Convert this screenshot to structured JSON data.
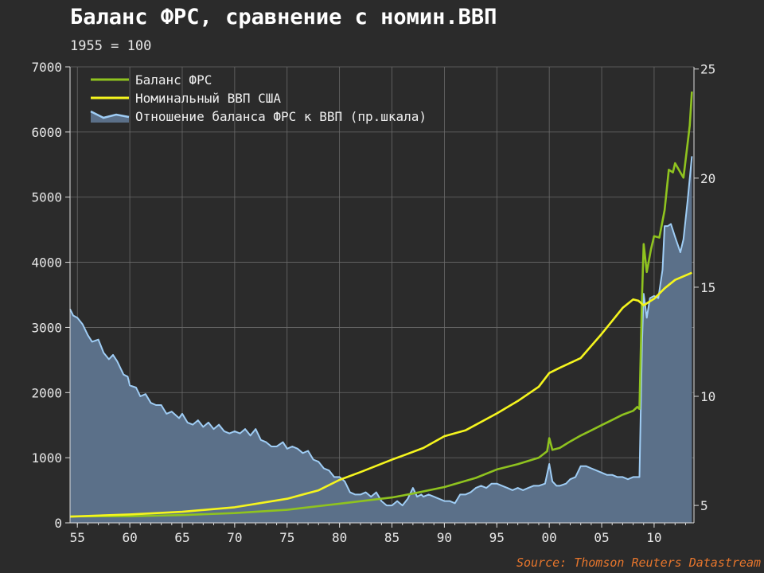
{
  "title": "Баланс ФРС, сравнение с номин.ВВП",
  "subtitle": "1955 = 100",
  "source": "Source: Thomson Reuters Datastream",
  "colors": {
    "background": "#2b2b2b",
    "fed_balance": "#8fc31f",
    "gdp": "#f5f51e",
    "ratio_line": "#9fcdf5",
    "ratio_fill": "#5b7089",
    "grid": "#6a6a6a"
  },
  "chart_data": {
    "type": "line",
    "x_unit": "year",
    "xlim": [
      1954.3,
      2013.8
    ],
    "ylim_left": [
      0,
      7000
    ],
    "ylim_right": [
      4.2,
      25.1
    ],
    "x_ticks": [
      {
        "value": 1955,
        "label": "55"
      },
      {
        "value": 1960,
        "label": "60"
      },
      {
        "value": 1965,
        "label": "65"
      },
      {
        "value": 1970,
        "label": "70"
      },
      {
        "value": 1975,
        "label": "75"
      },
      {
        "value": 1980,
        "label": "80"
      },
      {
        "value": 1985,
        "label": "85"
      },
      {
        "value": 1990,
        "label": "90"
      },
      {
        "value": 1995,
        "label": "95"
      },
      {
        "value": 2000,
        "label": "00"
      },
      {
        "value": 2005,
        "label": "05"
      },
      {
        "value": 2010,
        "label": "10"
      }
    ],
    "y_ticks_left": [
      0,
      1000,
      2000,
      3000,
      4000,
      5000,
      6000,
      7000
    ],
    "y_ticks_right": [
      5,
      10,
      15,
      20,
      25
    ],
    "grid": true,
    "legend_position": "top-left",
    "series": [
      {
        "name": "Баланс ФРС",
        "axis": "left",
        "style": "line",
        "color": "#8fc31f",
        "points": [
          [
            1954.3,
            100
          ],
          [
            1955,
            100
          ],
          [
            1960,
            102
          ],
          [
            1965,
            120
          ],
          [
            1970,
            150
          ],
          [
            1975,
            200
          ],
          [
            1980,
            295
          ],
          [
            1985,
            390
          ],
          [
            1987,
            450
          ],
          [
            1990,
            550
          ],
          [
            1993,
            690
          ],
          [
            1995,
            820
          ],
          [
            1997,
            900
          ],
          [
            1999,
            1000
          ],
          [
            1999.8,
            1100
          ],
          [
            2000,
            1300
          ],
          [
            2000.3,
            1120
          ],
          [
            2001,
            1150
          ],
          [
            2002,
            1250
          ],
          [
            2003,
            1340
          ],
          [
            2004,
            1420
          ],
          [
            2005,
            1500
          ],
          [
            2006,
            1580
          ],
          [
            2007,
            1660
          ],
          [
            2008,
            1720
          ],
          [
            2008.4,
            1780
          ],
          [
            2008.6,
            1750
          ],
          [
            2008.85,
            3500
          ],
          [
            2009,
            4280
          ],
          [
            2009.3,
            3850
          ],
          [
            2009.7,
            4200
          ],
          [
            2010,
            4400
          ],
          [
            2010.5,
            4380
          ],
          [
            2011,
            4800
          ],
          [
            2011.4,
            5420
          ],
          [
            2011.8,
            5380
          ],
          [
            2012,
            5520
          ],
          [
            2012.5,
            5380
          ],
          [
            2012.8,
            5300
          ],
          [
            2013.1,
            5700
          ],
          [
            2013.4,
            6100
          ],
          [
            2013.6,
            6620
          ]
        ]
      },
      {
        "name": "Номинальный ВВП США",
        "axis": "left",
        "style": "line",
        "color": "#f5f51e",
        "points": [
          [
            1954.3,
            95
          ],
          [
            1955,
            100
          ],
          [
            1960,
            130
          ],
          [
            1965,
            170
          ],
          [
            1970,
            240
          ],
          [
            1975,
            370
          ],
          [
            1978,
            500
          ],
          [
            1980,
            660
          ],
          [
            1982,
            780
          ],
          [
            1985,
            970
          ],
          [
            1988,
            1150
          ],
          [
            1990,
            1330
          ],
          [
            1992,
            1420
          ],
          [
            1995,
            1680
          ],
          [
            1997,
            1870
          ],
          [
            1999,
            2090
          ],
          [
            2000,
            2300
          ],
          [
            2001,
            2380
          ],
          [
            2003,
            2530
          ],
          [
            2005,
            2900
          ],
          [
            2007,
            3300
          ],
          [
            2008,
            3430
          ],
          [
            2008.5,
            3410
          ],
          [
            2009,
            3340
          ],
          [
            2010,
            3440
          ],
          [
            2011,
            3600
          ],
          [
            2012,
            3730
          ],
          [
            2013.6,
            3840
          ]
        ]
      },
      {
        "name": "Отношение баланса ФРС к ВВП (пр.шкала)",
        "axis": "right",
        "style": "area",
        "color": "#9fcdf5",
        "fill": "#5b7089",
        "points": [
          [
            1954.3,
            14
          ],
          [
            1954.6,
            13.7
          ],
          [
            1955,
            13.6
          ],
          [
            1955.5,
            13.3
          ],
          [
            1956,
            12.8
          ],
          [
            1956.4,
            12.5
          ],
          [
            1957,
            12.6
          ],
          [
            1957.5,
            12.0
          ],
          [
            1958,
            11.7
          ],
          [
            1958.4,
            11.9
          ],
          [
            1958.8,
            11.6
          ],
          [
            1959.4,
            11.0
          ],
          [
            1959.8,
            10.9
          ],
          [
            1960,
            10.5
          ],
          [
            1960.6,
            10.4
          ],
          [
            1961,
            10.0
          ],
          [
            1961.5,
            10.1
          ],
          [
            1962,
            9.7
          ],
          [
            1962.5,
            9.6
          ],
          [
            1963,
            9.6
          ],
          [
            1963.5,
            9.2
          ],
          [
            1964,
            9.3
          ],
          [
            1964.7,
            9.0
          ],
          [
            1965,
            9.2
          ],
          [
            1965.5,
            8.8
          ],
          [
            1966,
            8.7
          ],
          [
            1966.5,
            8.9
          ],
          [
            1967,
            8.6
          ],
          [
            1967.5,
            8.8
          ],
          [
            1968,
            8.5
          ],
          [
            1968.5,
            8.7
          ],
          [
            1969,
            8.4
          ],
          [
            1969.5,
            8.3
          ],
          [
            1970,
            8.4
          ],
          [
            1970.5,
            8.3
          ],
          [
            1971,
            8.5
          ],
          [
            1971.5,
            8.2
          ],
          [
            1972,
            8.5
          ],
          [
            1972.5,
            8.0
          ],
          [
            1973,
            7.9
          ],
          [
            1973.5,
            7.7
          ],
          [
            1974,
            7.7
          ],
          [
            1974.6,
            7.9
          ],
          [
            1975,
            7.6
          ],
          [
            1975.5,
            7.7
          ],
          [
            1976,
            7.6
          ],
          [
            1976.5,
            7.4
          ],
          [
            1977,
            7.5
          ],
          [
            1977.5,
            7.1
          ],
          [
            1978,
            7.0
          ],
          [
            1978.5,
            6.7
          ],
          [
            1979,
            6.6
          ],
          [
            1979.5,
            6.3
          ],
          [
            1980,
            6.3
          ],
          [
            1980.5,
            6.1
          ],
          [
            1981,
            5.6
          ],
          [
            1981.5,
            5.5
          ],
          [
            1982,
            5.5
          ],
          [
            1982.5,
            5.6
          ],
          [
            1983,
            5.4
          ],
          [
            1983.5,
            5.6
          ],
          [
            1984,
            5.2
          ],
          [
            1984.5,
            5.0
          ],
          [
            1985,
            5.0
          ],
          [
            1985.5,
            5.2
          ],
          [
            1986,
            5.0
          ],
          [
            1986.5,
            5.3
          ],
          [
            1987,
            5.8
          ],
          [
            1987.4,
            5.4
          ],
          [
            1987.8,
            5.5
          ],
          [
            1988,
            5.4
          ],
          [
            1988.5,
            5.5
          ],
          [
            1989,
            5.4
          ],
          [
            1989.5,
            5.3
          ],
          [
            1990,
            5.2
          ],
          [
            1990.5,
            5.2
          ],
          [
            1991,
            5.1
          ],
          [
            1991.5,
            5.5
          ],
          [
            1992,
            5.5
          ],
          [
            1992.5,
            5.6
          ],
          [
            1993,
            5.8
          ],
          [
            1993.5,
            5.9
          ],
          [
            1994,
            5.8
          ],
          [
            1994.5,
            6.0
          ],
          [
            1995,
            6.0
          ],
          [
            1995.5,
            5.9
          ],
          [
            1996,
            5.8
          ],
          [
            1996.5,
            5.7
          ],
          [
            1997,
            5.8
          ],
          [
            1997.5,
            5.7
          ],
          [
            1998,
            5.8
          ],
          [
            1998.5,
            5.9
          ],
          [
            1999,
            5.9
          ],
          [
            1999.6,
            6.0
          ],
          [
            2000,
            6.9
          ],
          [
            2000.3,
            6.1
          ],
          [
            2000.7,
            5.9
          ],
          [
            2001,
            5.9
          ],
          [
            2001.6,
            6.0
          ],
          [
            2002,
            6.2
          ],
          [
            2002.5,
            6.3
          ],
          [
            2003,
            6.8
          ],
          [
            2003.5,
            6.8
          ],
          [
            2004,
            6.7
          ],
          [
            2004.5,
            6.6
          ],
          [
            2005,
            6.5
          ],
          [
            2005.5,
            6.4
          ],
          [
            2006,
            6.4
          ],
          [
            2006.5,
            6.3
          ],
          [
            2007,
            6.3
          ],
          [
            2007.5,
            6.2
          ],
          [
            2008,
            6.3
          ],
          [
            2008.6,
            6.3
          ],
          [
            2008.85,
            12.5
          ],
          [
            2009,
            14.7
          ],
          [
            2009.3,
            13.6
          ],
          [
            2009.6,
            14.5
          ],
          [
            2010,
            14.6
          ],
          [
            2010.4,
            14.5
          ],
          [
            2010.8,
            15.8
          ],
          [
            2011,
            17.8
          ],
          [
            2011.3,
            17.8
          ],
          [
            2011.6,
            17.9
          ],
          [
            2012,
            17.3
          ],
          [
            2012.5,
            16.6
          ],
          [
            2012.8,
            17.2
          ],
          [
            2013.2,
            19.0
          ],
          [
            2013.6,
            21.0
          ]
        ]
      }
    ]
  },
  "legend": [
    {
      "label": "Баланс ФРС",
      "kind": "line",
      "color": "#8fc31f"
    },
    {
      "label": "Номинальный ВВП США",
      "kind": "line",
      "color": "#f5f51e"
    },
    {
      "label": "Отношение баланса ФРС к ВВП (пр.шкала)",
      "kind": "area",
      "color": "#9fcdf5",
      "fill": "#5b7089"
    }
  ]
}
